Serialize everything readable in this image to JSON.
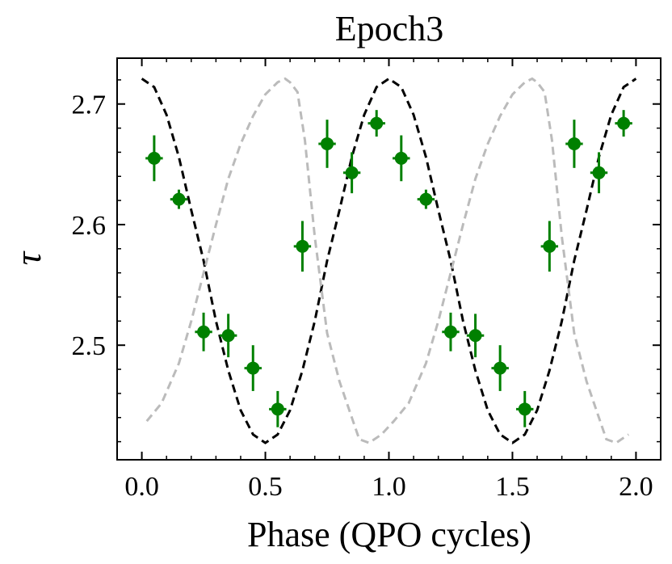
{
  "chart_data": {
    "type": "scatter",
    "title": "Epoch3",
    "xlabel": "Phase (QPO cycles)",
    "ylabel": "τ",
    "xlim": [
      -0.1,
      2.1
    ],
    "ylim": [
      2.405,
      2.738
    ],
    "xticks": [
      0.0,
      0.5,
      1.0,
      1.5,
      2.0
    ],
    "xtick_labels": [
      "0.0",
      "0.5",
      "1.0",
      "1.5",
      "2.0"
    ],
    "yticks": [
      2.5,
      2.6,
      2.7
    ],
    "ytick_labels": [
      "2.5",
      "2.6",
      "2.7"
    ],
    "grid": false,
    "colors": {
      "points": "#008000",
      "model": "#000000",
      "reference": "#bbbbbb"
    },
    "series": [
      {
        "name": "data",
        "style": "points-with-errorbars",
        "x": [
          0.05,
          0.15,
          0.25,
          0.35,
          0.45,
          0.55,
          0.65,
          0.75,
          0.85,
          0.95,
          1.05,
          1.15,
          1.25,
          1.35,
          1.45,
          1.55,
          1.65,
          1.75,
          1.85,
          1.95
        ],
        "y": [
          2.655,
          2.621,
          2.511,
          2.508,
          2.481,
          2.447,
          2.582,
          2.667,
          2.643,
          2.684,
          2.655,
          2.621,
          2.511,
          2.508,
          2.481,
          2.447,
          2.582,
          2.667,
          2.643,
          2.684
        ],
        "xerr": 0.035,
        "yerr": [
          0.019,
          0.008,
          0.016,
          0.018,
          0.019,
          0.015,
          0.021,
          0.02,
          0.017,
          0.011,
          0.019,
          0.008,
          0.016,
          0.018,
          0.019,
          0.015,
          0.021,
          0.02,
          0.017,
          0.011
        ]
      },
      {
        "name": "model",
        "style": "dashed",
        "x": [
          0.0,
          0.05,
          0.1,
          0.15,
          0.2,
          0.25,
          0.3,
          0.35,
          0.4,
          0.45,
          0.5,
          0.55,
          0.6,
          0.65,
          0.7,
          0.75,
          0.8,
          0.85,
          0.9,
          0.95,
          1.0,
          1.05,
          1.1,
          1.15,
          1.2,
          1.25,
          1.3,
          1.35,
          1.4,
          1.45,
          1.5,
          1.55,
          1.6,
          1.65,
          1.7,
          1.75,
          1.8,
          1.85,
          1.9,
          1.95,
          2.0
        ],
        "y": [
          2.721,
          2.714,
          2.691,
          2.656,
          2.612,
          2.57,
          2.52,
          2.479,
          2.446,
          2.426,
          2.419,
          2.426,
          2.446,
          2.479,
          2.52,
          2.57,
          2.612,
          2.656,
          2.691,
          2.714,
          2.721,
          2.714,
          2.691,
          2.656,
          2.612,
          2.57,
          2.52,
          2.479,
          2.446,
          2.426,
          2.419,
          2.426,
          2.446,
          2.479,
          2.52,
          2.57,
          2.612,
          2.656,
          2.691,
          2.714,
          2.721
        ]
      },
      {
        "name": "reference",
        "style": "dashed",
        "x": [
          0.02,
          0.08,
          0.15,
          0.2,
          0.25,
          0.3,
          0.35,
          0.4,
          0.45,
          0.5,
          0.55,
          0.58,
          0.6,
          0.63,
          0.66,
          0.7,
          0.75,
          0.8,
          0.85,
          0.88,
          0.92,
          0.97,
          1.02,
          1.08,
          1.15,
          1.2,
          1.25,
          1.3,
          1.35,
          1.4,
          1.45,
          1.5,
          1.55,
          1.58,
          1.6,
          1.63,
          1.66,
          1.7,
          1.75,
          1.8,
          1.85,
          1.88,
          1.92,
          1.97
        ],
        "y": [
          2.437,
          2.452,
          2.485,
          2.52,
          2.56,
          2.6,
          2.638,
          2.667,
          2.69,
          2.708,
          2.718,
          2.721,
          2.718,
          2.71,
          2.67,
          2.59,
          2.51,
          2.47,
          2.44,
          2.422,
          2.419,
          2.426,
          2.437,
          2.452,
          2.485,
          2.52,
          2.56,
          2.6,
          2.638,
          2.667,
          2.69,
          2.708,
          2.718,
          2.721,
          2.718,
          2.71,
          2.67,
          2.59,
          2.51,
          2.47,
          2.44,
          2.422,
          2.419,
          2.426
        ]
      }
    ]
  }
}
